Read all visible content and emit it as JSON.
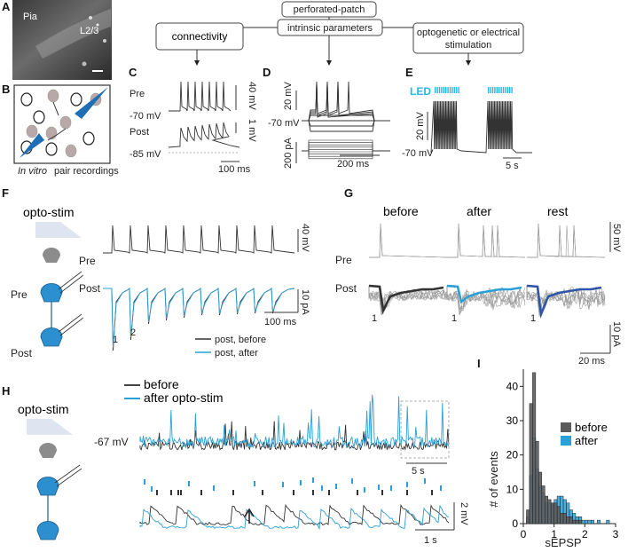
{
  "panels": {
    "A": {
      "letter": "A",
      "pia": "Pia",
      "layer": "L2/3"
    },
    "B": {
      "letter": "B",
      "caption_italic": "In vitro",
      "caption_rest": " pair recordings"
    },
    "flow": {
      "top": "perforated-patch",
      "left": "connectivity",
      "middle": "intrinsic parameters",
      "right_line1": "optogenetic or electrical",
      "right_line2": "stimulation"
    },
    "C": {
      "letter": "C",
      "pre": "Pre",
      "post": "Post",
      "v_pre": "-70 mV",
      "v_post": "-85 mV",
      "scale_v1": "40 mV",
      "scale_v2": "1 mV",
      "scale_t": "100 ms"
    },
    "D": {
      "letter": "D",
      "v": "-70 mV",
      "scale_v": "20 mV",
      "scale_i": "200 pA",
      "scale_t": "200 ms"
    },
    "E": {
      "letter": "E",
      "led": "LED",
      "v": "-70 mV",
      "scale_v": "20 mV",
      "scale_t": "5 s"
    },
    "F": {
      "letter": "F",
      "opto": "opto-stim",
      "pre_cell": "Pre",
      "post_cell": "Post",
      "pre": "Pre",
      "post": "Post",
      "scale_v": "40 mV",
      "scale_i": "10 pA",
      "scale_t": "100 ms",
      "peak1": "1",
      "peak2": "2",
      "legend_before": "post, before",
      "legend_after": "post, after"
    },
    "G": {
      "letter": "G",
      "before": "before",
      "after": "after",
      "rest": "rest",
      "pre": "Pre",
      "post": "Post",
      "peak1a": "1",
      "peak1b": "1",
      "peak1c": "1",
      "scale_v": "50 mV",
      "scale_i": "10 pA",
      "scale_t": "20 ms"
    },
    "H": {
      "letter": "H",
      "opto": "opto-stim",
      "legend_before": "before",
      "legend_after": "after opto-stim",
      "v": "-67 mV",
      "scale_t1": "5 s",
      "scale_v": "2 mV",
      "scale_t2": "1 s"
    },
    "I": {
      "letter": "I",
      "ylabel": "# of events",
      "xlabel": "sEPSP",
      "legend_before": "before",
      "legend_after": "after"
    }
  },
  "colors": {
    "before": "#4a4a4a",
    "after": "#2aa0d6",
    "dark_blue": "#2f55a8",
    "led": "#29b6e8",
    "neuron_fill": "#2c8fd0"
  },
  "chart_data": {
    "type": "bar",
    "title": "",
    "xlabel": "sEPSP",
    "ylabel": "# of events",
    "xlim": [
      0,
      3
    ],
    "ylim": [
      0,
      45
    ],
    "xticks": [
      0,
      1,
      2,
      3
    ],
    "yticks": [
      0,
      10,
      20,
      30,
      40
    ],
    "bin_width": 0.1,
    "bin_starts": [
      0.1,
      0.2,
      0.3,
      0.4,
      0.5,
      0.6,
      0.7,
      0.8,
      0.9,
      1.0,
      1.1,
      1.2,
      1.3,
      1.4,
      1.5,
      1.6,
      1.7,
      1.8,
      1.9,
      2.0,
      2.1,
      2.2,
      2.3,
      2.4,
      2.5,
      2.6,
      2.7,
      2.8
    ],
    "series": [
      {
        "name": "before",
        "values": [
          4,
          35,
          44,
          24,
          15,
          11,
          8,
          7,
          6,
          6,
          5,
          3,
          3,
          2,
          2,
          1,
          1,
          1,
          0,
          0,
          0,
          0,
          0,
          0,
          0,
          0,
          0,
          0
        ]
      },
      {
        "name": "after",
        "values": [
          2,
          14,
          25,
          16,
          11,
          9,
          6,
          6,
          6,
          7,
          8,
          8,
          7,
          6,
          4,
          3,
          2,
          2,
          1,
          1,
          1,
          1,
          0,
          1,
          0,
          0,
          1,
          0
        ]
      }
    ]
  }
}
